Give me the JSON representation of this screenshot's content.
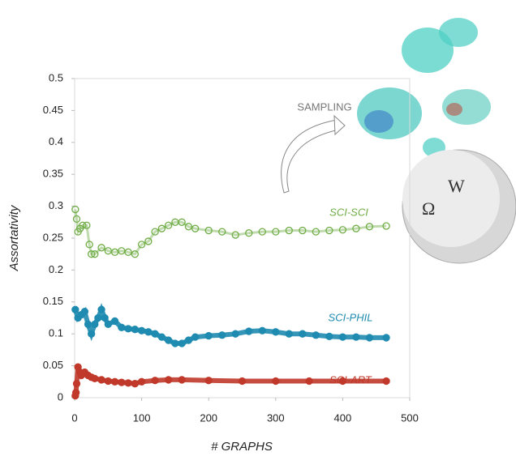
{
  "chart_data": {
    "type": "scatter",
    "xlabel": "# GRAPHS",
    "ylabel": "Assortativity",
    "annotation": "SAMPLING",
    "xlim": [
      0,
      500
    ],
    "xticks": [
      0,
      100,
      200,
      300,
      400,
      500
    ],
    "ylim": [
      0,
      0.5
    ],
    "yticks": [
      0,
      0.05,
      0.1,
      0.15,
      0.2,
      0.25,
      0.3,
      0.35,
      0.4,
      0.45,
      0.5
    ],
    "series": [
      {
        "name": "SCI-SCI",
        "color": "#70ad47",
        "hollow": true,
        "x": [
          1,
          3,
          5,
          8,
          12,
          18,
          22,
          25,
          30,
          40,
          50,
          60,
          70,
          80,
          90,
          100,
          110,
          120,
          130,
          140,
          150,
          160,
          170,
          180,
          200,
          220,
          240,
          260,
          280,
          300,
          320,
          340,
          360,
          380,
          400,
          420,
          440,
          465
        ],
        "values": [
          0.295,
          0.28,
          0.26,
          0.265,
          0.27,
          0.27,
          0.24,
          0.225,
          0.225,
          0.235,
          0.23,
          0.228,
          0.23,
          0.228,
          0.225,
          0.24,
          0.245,
          0.26,
          0.265,
          0.27,
          0.275,
          0.275,
          0.268,
          0.265,
          0.262,
          0.26,
          0.255,
          0.258,
          0.26,
          0.26,
          0.262,
          0.262,
          0.26,
          0.262,
          0.263,
          0.265,
          0.268,
          0.269
        ]
      },
      {
        "name": "SCI-PHIL",
        "color": "#1f8bb0",
        "hollow": false,
        "x": [
          1,
          5,
          10,
          15,
          20,
          25,
          30,
          35,
          40,
          45,
          50,
          60,
          70,
          80,
          90,
          100,
          110,
          120,
          130,
          140,
          150,
          160,
          170,
          180,
          200,
          220,
          240,
          260,
          280,
          300,
          320,
          340,
          360,
          380,
          400,
          420,
          440,
          465
        ],
        "values": [
          0.138,
          0.125,
          0.13,
          0.135,
          0.115,
          0.1,
          0.115,
          0.125,
          0.138,
          0.125,
          0.115,
          0.12,
          0.11,
          0.108,
          0.107,
          0.105,
          0.103,
          0.1,
          0.095,
          0.09,
          0.085,
          0.085,
          0.09,
          0.095,
          0.097,
          0.098,
          0.1,
          0.104,
          0.105,
          0.103,
          0.1,
          0.1,
          0.098,
          0.096,
          0.095,
          0.095,
          0.094,
          0.094
        ]
      },
      {
        "name": "SCI-ART",
        "color": "#c0392b",
        "hollow": false,
        "x": [
          1,
          2,
          3,
          5,
          8,
          10,
          15,
          20,
          25,
          30,
          40,
          50,
          60,
          70,
          80,
          90,
          100,
          120,
          140,
          160,
          200,
          250,
          300,
          350,
          400,
          465
        ],
        "values": [
          0.003,
          0.008,
          0.022,
          0.048,
          0.04,
          0.035,
          0.04,
          0.035,
          0.032,
          0.03,
          0.028,
          0.026,
          0.025,
          0.024,
          0.023,
          0.022,
          0.025,
          0.027,
          0.028,
          0.028,
          0.027,
          0.026,
          0.026,
          0.026,
          0.026,
          0.026
        ]
      }
    ]
  }
}
